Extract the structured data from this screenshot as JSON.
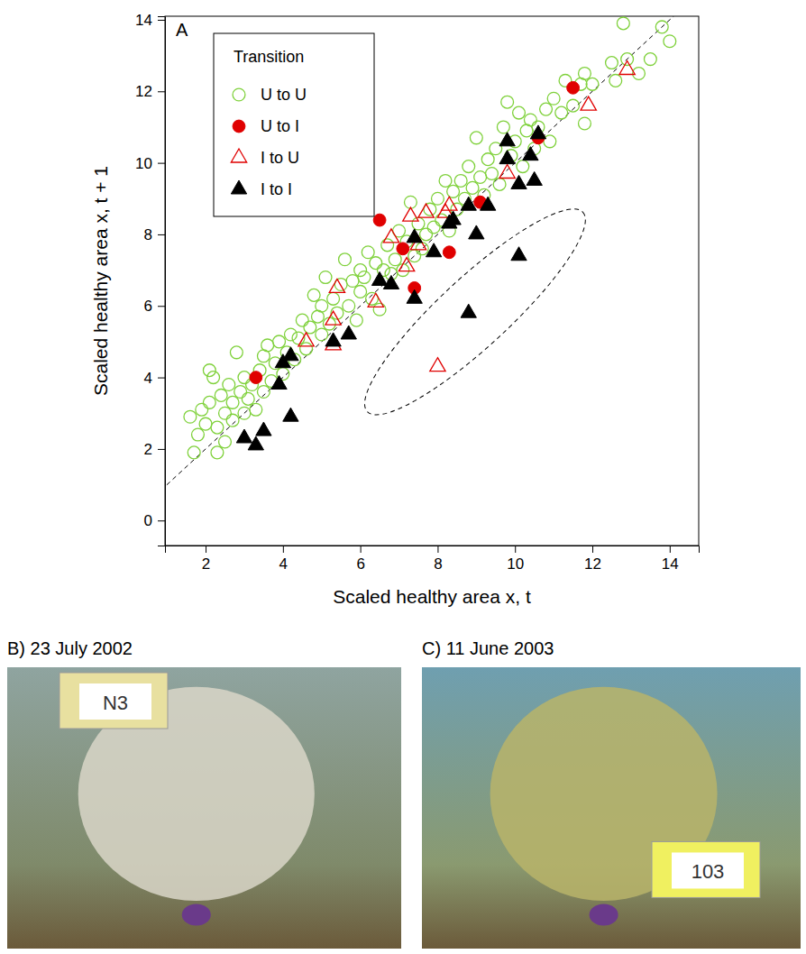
{
  "chart_data": {
    "type": "scatter",
    "panel_label": "A",
    "x_label": "Scaled healthy area x, t",
    "y_label": "Scaled healthy area x, t + 1",
    "xlim": [
      0.95,
      14.75
    ],
    "ylim": [
      -0.7,
      14.1
    ],
    "xticks": [
      2,
      4,
      6,
      8,
      10,
      12,
      14
    ],
    "yticks": [
      0,
      2,
      4,
      6,
      8,
      10,
      12,
      14
    ],
    "grid": false,
    "legend": "top-left",
    "legend_title": "Transition",
    "series": [
      {
        "name": "U to U",
        "color": "#7fd13b",
        "marker": "circle-open",
        "x": [
          1.6,
          1.7,
          1.8,
          1.9,
          2.0,
          2.1,
          2.1,
          2.2,
          2.3,
          2.3,
          2.4,
          2.5,
          2.5,
          2.6,
          2.7,
          2.7,
          2.8,
          2.9,
          3.0,
          3.0,
          3.1,
          3.2,
          3.3,
          3.4,
          3.5,
          3.5,
          3.6,
          3.7,
          3.8,
          3.9,
          4.0,
          4.1,
          4.2,
          4.3,
          4.4,
          4.5,
          4.6,
          4.7,
          4.8,
          4.9,
          5.0,
          5.0,
          5.1,
          5.2,
          5.3,
          5.4,
          5.5,
          5.6,
          5.7,
          5.8,
          5.9,
          6.0,
          6.0,
          6.1,
          6.2,
          6.3,
          6.4,
          6.5,
          6.6,
          6.7,
          6.8,
          6.9,
          7.0,
          7.1,
          7.2,
          7.3,
          7.4,
          7.5,
          7.6,
          7.7,
          7.8,
          7.9,
          8.0,
          8.1,
          8.2,
          8.3,
          8.4,
          8.5,
          8.6,
          8.7,
          8.8,
          8.9,
          9.0,
          9.1,
          9.2,
          9.3,
          9.4,
          9.5,
          9.6,
          9.7,
          9.8,
          9.9,
          10.0,
          10.1,
          10.2,
          10.3,
          10.4,
          10.5,
          10.6,
          10.8,
          10.9,
          11.0,
          11.2,
          11.3,
          11.5,
          11.7,
          11.8,
          11.8,
          12.0,
          12.5,
          12.6,
          12.8,
          12.9,
          13.2,
          13.5,
          13.8,
          14.0
        ],
        "values": [
          2.9,
          1.9,
          2.4,
          3.1,
          2.7,
          3.3,
          4.2,
          4.0,
          1.9,
          2.6,
          3.5,
          2.2,
          3.0,
          3.8,
          2.8,
          3.3,
          4.7,
          3.6,
          3.0,
          4.0,
          3.4,
          3.8,
          3.1,
          4.2,
          3.6,
          4.6,
          4.9,
          3.9,
          4.4,
          5.0,
          4.1,
          4.7,
          5.2,
          4.5,
          5.1,
          5.6,
          4.8,
          5.4,
          6.3,
          5.7,
          5.2,
          6.0,
          6.8,
          5.5,
          6.2,
          5.8,
          6.6,
          7.3,
          6.0,
          6.7,
          5.6,
          6.4,
          7.0,
          6.8,
          7.5,
          6.2,
          7.2,
          5.9,
          7.0,
          7.7,
          6.9,
          7.3,
          8.1,
          7.0,
          7.8,
          8.9,
          7.4,
          8.3,
          7.6,
          8.0,
          8.7,
          8.2,
          9.0,
          8.4,
          9.5,
          8.1,
          9.2,
          8.7,
          9.5,
          9.0,
          9.9,
          9.3,
          10.7,
          9.6,
          9.1,
          10.1,
          9.7,
          10.4,
          9.4,
          11.0,
          11.7,
          10.2,
          10.6,
          11.4,
          9.9,
          10.9,
          11.2,
          10.4,
          11.0,
          11.5,
          10.6,
          11.8,
          11.4,
          12.3,
          11.6,
          12.2,
          11.1,
          12.5,
          12.2,
          12.8,
          12.3,
          13.9,
          12.9,
          12.5,
          12.9,
          13.8,
          13.4
        ]
      },
      {
        "name": "U to I",
        "color": "#e00000",
        "marker": "circle",
        "x": [
          3.3,
          6.5,
          7.1,
          7.4,
          8.3,
          9.1,
          10.6,
          11.5
        ],
        "values": [
          4.0,
          8.4,
          7.6,
          6.5,
          7.5,
          8.9,
          10.7,
          12.1
        ]
      },
      {
        "name": "I to U",
        "color": "#e00000",
        "marker": "triangle-open",
        "x": [
          4.6,
          5.3,
          5.4,
          5.3,
          6.4,
          6.8,
          7.2,
          7.3,
          7.5,
          7.7,
          8.2,
          8.3,
          9.8,
          11.9,
          12.9,
          8.0
        ],
        "values": [
          5.0,
          5.6,
          6.5,
          4.9,
          6.1,
          7.9,
          7.1,
          8.5,
          7.7,
          8.6,
          8.6,
          8.8,
          9.7,
          11.6,
          12.6,
          4.3
        ]
      },
      {
        "name": "I to I",
        "color": "#000000",
        "marker": "triangle",
        "x": [
          3.0,
          3.3,
          3.5,
          3.9,
          4.0,
          4.2,
          4.2,
          5.3,
          5.7,
          6.5,
          6.8,
          7.4,
          7.4,
          7.9,
          8.3,
          8.4,
          8.8,
          9.0,
          8.8,
          9.3,
          9.8,
          9.8,
          10.1,
          10.4,
          10.5,
          10.6,
          10.1
        ],
        "values": [
          2.3,
          2.1,
          2.5,
          3.8,
          4.4,
          4.6,
          2.9,
          5.0,
          5.2,
          6.7,
          6.6,
          7.9,
          6.2,
          7.5,
          8.3,
          8.4,
          8.8,
          8.0,
          5.8,
          8.8,
          10.6,
          10.1,
          9.4,
          10.2,
          9.5,
          10.8,
          7.4
        ]
      }
    ]
  },
  "photos": [
    {
      "caption": "B) 23 July 2002",
      "slate": "N3"
    },
    {
      "caption": "C) 11 June 2003",
      "slate": "103"
    }
  ]
}
